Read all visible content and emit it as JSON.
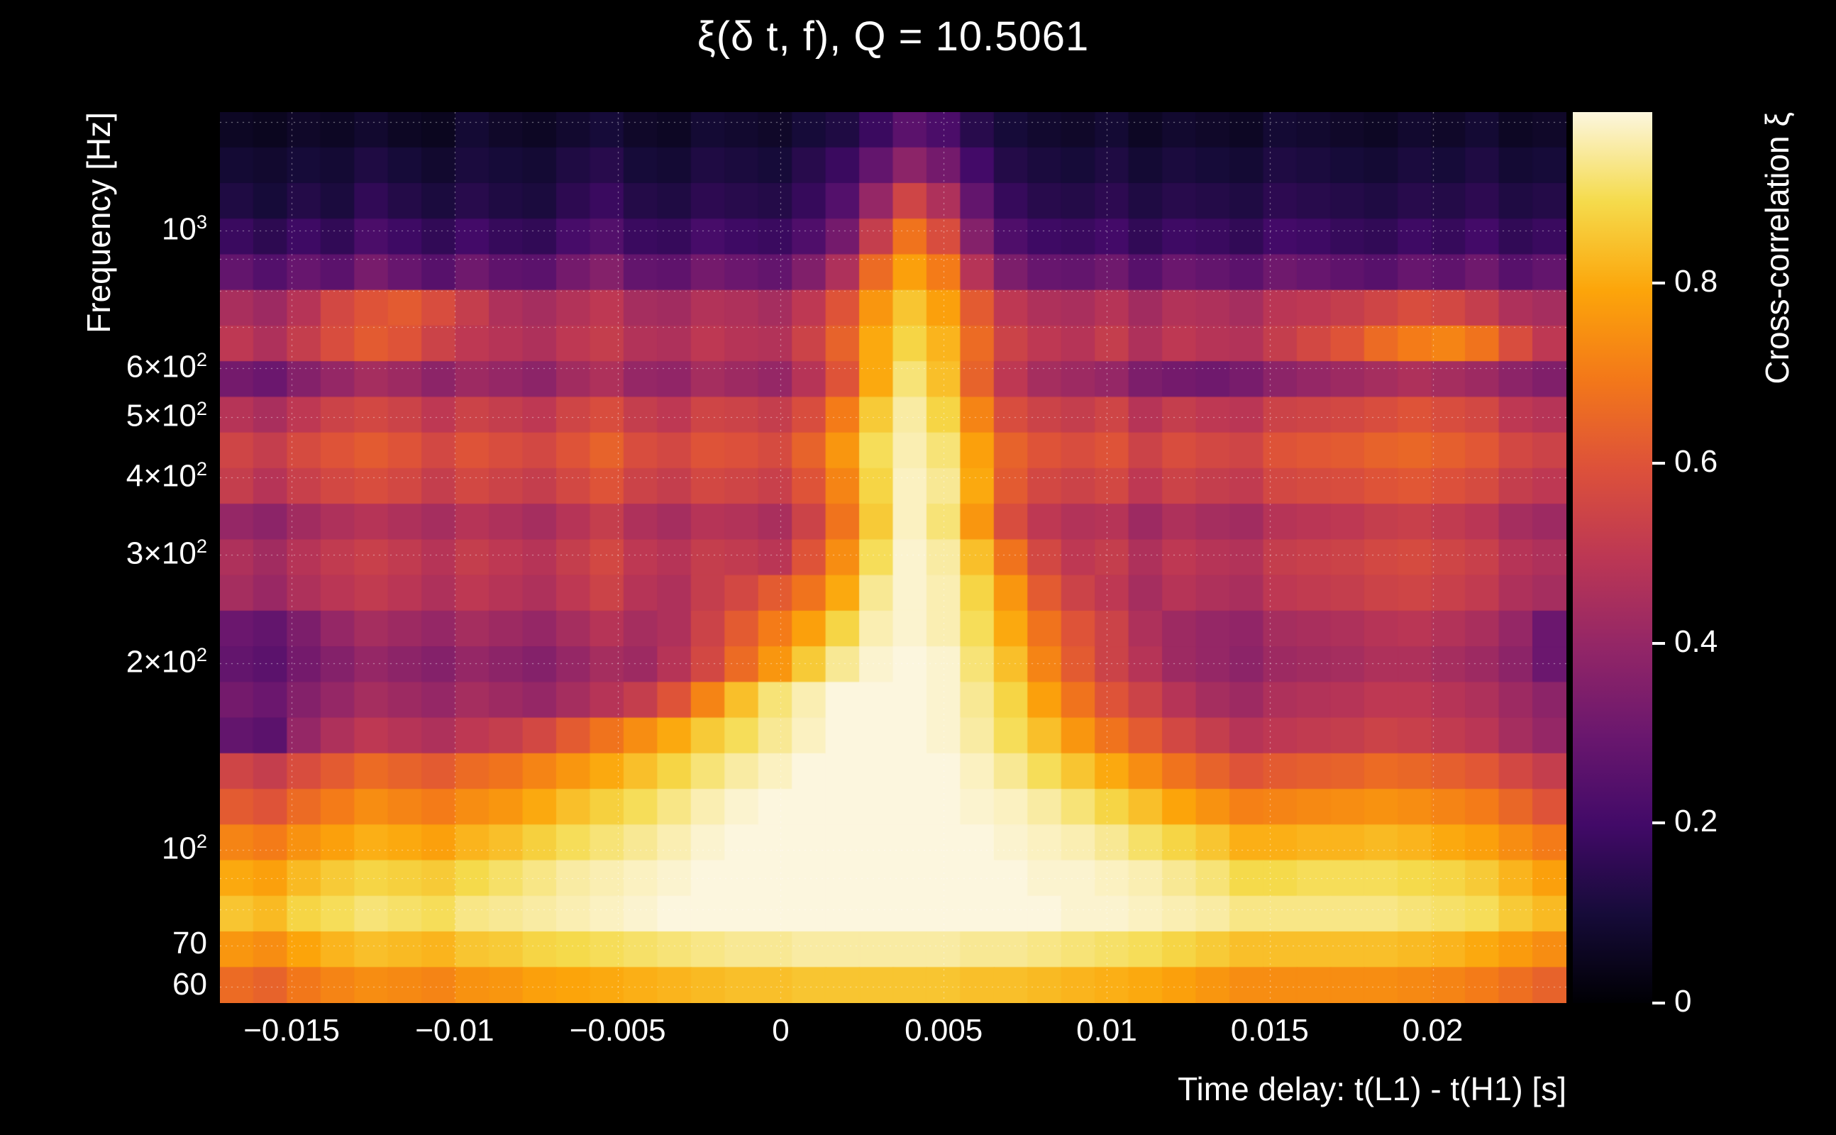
{
  "chart_data": {
    "type": "heatmap",
    "title": "ξ(δ t, f), Q = 10.5061",
    "xlabel": "Time delay: t(L1) - t(H1) [s]",
    "ylabel": "Frequency [Hz]",
    "colorbar_label": "Cross-correlation ξ",
    "x_range": [
      -0.0172,
      0.0241
    ],
    "y_range_hz": [
      56.5,
      1556
    ],
    "y_scale": "log",
    "grid": "dotted",
    "legend_position": "right-colorbar",
    "colorbar_range": [
      0,
      0.99
    ],
    "x_ticks": [
      {
        "v": -0.015,
        "label": "−0.015"
      },
      {
        "v": -0.01,
        "label": "−0.01"
      },
      {
        "v": -0.005,
        "label": "−0.005"
      },
      {
        "v": 0,
        "label": "0"
      },
      {
        "v": 0.005,
        "label": "0.005"
      },
      {
        "v": 0.01,
        "label": "0.01"
      },
      {
        "v": 0.015,
        "label": "0.015"
      },
      {
        "v": 0.02,
        "label": "0.02"
      }
    ],
    "y_ticks": [
      {
        "v": 1000,
        "base": "10",
        "sup": "3"
      },
      {
        "v": 600,
        "base": "6×10",
        "sup": "2"
      },
      {
        "v": 500,
        "base": "5×10",
        "sup": "2"
      },
      {
        "v": 400,
        "base": "4×10",
        "sup": "2"
      },
      {
        "v": 300,
        "base": "3×10",
        "sup": "2"
      },
      {
        "v": 200,
        "base": "2×10",
        "sup": "2"
      },
      {
        "v": 100,
        "base": "10",
        "sup": "2"
      },
      {
        "v": 70,
        "base": "70",
        "sup": ""
      },
      {
        "v": 60,
        "base": "60",
        "sup": ""
      }
    ],
    "y_gridlines_hz": [
      60,
      70,
      80,
      90,
      100,
      200,
      300,
      400,
      500,
      600,
      700,
      800,
      900,
      1000,
      1500
    ],
    "colorbar_ticks": [
      {
        "v": 0,
        "label": "0"
      },
      {
        "v": 0.2,
        "label": "0.2"
      },
      {
        "v": 0.4,
        "label": "0.4"
      },
      {
        "v": 0.6,
        "label": "0.6"
      },
      {
        "v": 0.8,
        "label": "0.8"
      }
    ],
    "colormap": [
      {
        "t": 0,
        "c": "#000004"
      },
      {
        "t": 0.1,
        "c": "#160b39"
      },
      {
        "t": 0.2,
        "c": "#420a68"
      },
      {
        "t": 0.3,
        "c": "#6a176e"
      },
      {
        "t": 0.4,
        "c": "#932667"
      },
      {
        "t": 0.5,
        "c": "#bc3754"
      },
      {
        "t": 0.6,
        "c": "#dd513a"
      },
      {
        "t": 0.7,
        "c": "#f37819"
      },
      {
        "t": 0.8,
        "c": "#fca50a"
      },
      {
        "t": 0.9,
        "c": "#f5db4c"
      },
      {
        "t": 1,
        "c": "#fcf6de"
      }
    ],
    "values_scale": 100,
    "row_center_freqs_hz": [
      1460,
      1280,
      1120,
      981,
      859,
      752,
      658,
      576,
      504,
      441,
      386,
      338,
      296,
      259,
      227,
      199,
      174,
      152,
      133,
      117,
      102,
      89,
      78,
      68,
      60
    ],
    "values": [
      [
        6,
        5,
        7,
        6,
        8,
        6,
        5,
        9,
        7,
        6,
        8,
        10,
        7,
        6,
        9,
        8,
        7,
        10,
        12,
        18,
        26,
        22,
        14,
        10,
        8,
        7,
        9,
        6,
        8,
        7,
        6,
        9,
        8,
        7,
        6,
        8,
        7,
        9,
        6,
        7
      ],
      [
        9,
        8,
        10,
        9,
        12,
        10,
        8,
        11,
        10,
        9,
        12,
        14,
        10,
        9,
        12,
        11,
        10,
        14,
        18,
        28,
        38,
        32,
        20,
        13,
        11,
        10,
        12,
        9,
        11,
        10,
        9,
        12,
        11,
        10,
        9,
        11,
        10,
        12,
        9,
        10
      ],
      [
        12,
        10,
        13,
        11,
        16,
        13,
        11,
        14,
        12,
        11,
        15,
        18,
        13,
        12,
        15,
        14,
        13,
        17,
        24,
        40,
        55,
        46,
        28,
        17,
        14,
        13,
        15,
        12,
        14,
        13,
        12,
        15,
        14,
        13,
        12,
        14,
        13,
        15,
        12,
        13
      ],
      [
        18,
        15,
        19,
        16,
        22,
        19,
        16,
        20,
        17,
        16,
        21,
        24,
        18,
        17,
        21,
        19,
        18,
        23,
        32,
        52,
        68,
        58,
        36,
        23,
        19,
        18,
        20,
        16,
        19,
        18,
        16,
        20,
        19,
        17,
        16,
        19,
        17,
        20,
        16,
        18
      ],
      [
        28,
        24,
        29,
        26,
        33,
        29,
        25,
        31,
        27,
        26,
        32,
        36,
        28,
        27,
        32,
        30,
        28,
        35,
        46,
        66,
        78,
        70,
        48,
        34,
        29,
        28,
        31,
        25,
        30,
        28,
        26,
        31,
        29,
        27,
        25,
        29,
        27,
        31,
        25,
        28
      ],
      [
        45,
        42,
        48,
        56,
        60,
        62,
        58,
        52,
        46,
        44,
        47,
        50,
        44,
        43,
        47,
        46,
        44,
        50,
        60,
        76,
        85,
        78,
        62,
        50,
        46,
        45,
        48,
        43,
        47,
        46,
        44,
        49,
        50,
        52,
        55,
        58,
        56,
        52,
        46,
        44
      ],
      [
        50,
        46,
        52,
        58,
        62,
        60,
        54,
        50,
        48,
        46,
        50,
        52,
        47,
        46,
        50,
        48,
        47,
        54,
        64,
        80,
        88,
        82,
        66,
        54,
        50,
        48,
        52,
        46,
        50,
        48,
        47,
        52,
        56,
        60,
        66,
        70,
        72,
        68,
        58,
        50
      ],
      [
        32,
        30,
        36,
        40,
        44,
        42,
        38,
        42,
        40,
        38,
        43,
        46,
        40,
        39,
        44,
        42,
        40,
        48,
        60,
        80,
        92,
        84,
        64,
        50,
        44,
        42,
        40,
        34,
        32,
        31,
        33,
        38,
        40,
        42,
        44,
        46,
        44,
        42,
        38,
        35
      ],
      [
        48,
        45,
        50,
        54,
        56,
        54,
        50,
        54,
        52,
        50,
        55,
        58,
        52,
        50,
        55,
        54,
        52,
        58,
        70,
        86,
        95,
        88,
        72,
        58,
        54,
        52,
        55,
        48,
        52,
        50,
        49,
        54,
        55,
        56,
        58,
        60,
        58,
        56,
        50,
        48
      ],
      [
        55,
        52,
        57,
        60,
        62,
        60,
        56,
        60,
        58,
        56,
        60,
        64,
        58,
        56,
        60,
        59,
        57,
        64,
        76,
        90,
        96,
        92,
        78,
        64,
        60,
        58,
        60,
        54,
        58,
        56,
        55,
        60,
        61,
        62,
        64,
        65,
        63,
        61,
        56,
        54
      ],
      [
        52,
        48,
        53,
        56,
        58,
        56,
        52,
        56,
        54,
        52,
        56,
        60,
        54,
        52,
        56,
        55,
        53,
        60,
        72,
        88,
        97,
        94,
        80,
        62,
        56,
        54,
        56,
        50,
        54,
        52,
        51,
        56,
        57,
        58,
        60,
        61,
        59,
        57,
        52,
        50
      ],
      [
        40,
        38,
        43,
        46,
        48,
        46,
        44,
        48,
        46,
        44,
        48,
        52,
        46,
        44,
        48,
        47,
        45,
        54,
        68,
        86,
        97,
        92,
        76,
        58,
        50,
        47,
        48,
        42,
        46,
        44,
        43,
        48,
        49,
        50,
        52,
        53,
        51,
        49,
        44,
        42
      ],
      [
        46,
        43,
        48,
        51,
        53,
        51,
        48,
        52,
        50,
        48,
        52,
        56,
        50,
        48,
        52,
        51,
        49,
        60,
        74,
        90,
        98,
        95,
        84,
        68,
        56,
        50,
        52,
        46,
        50,
        48,
        47,
        52,
        53,
        54,
        56,
        57,
        55,
        53,
        48,
        46
      ],
      [
        44,
        41,
        46,
        49,
        51,
        49,
        46,
        50,
        48,
        46,
        50,
        54,
        48,
        46,
        52,
        56,
        62,
        68,
        80,
        94,
        98,
        96,
        88,
        76,
        62,
        54,
        50,
        44,
        48,
        46,
        45,
        50,
        51,
        52,
        54,
        55,
        53,
        51,
        46,
        44
      ],
      [
        30,
        28,
        34,
        40,
        44,
        42,
        40,
        44,
        42,
        40,
        44,
        48,
        44,
        46,
        54,
        62,
        70,
        78,
        88,
        96,
        98,
        96,
        90,
        80,
        68,
        60,
        54,
        46,
        42,
        40,
        39,
        44,
        45,
        46,
        48,
        49,
        47,
        45,
        40,
        30
      ],
      [
        28,
        26,
        32,
        36,
        40,
        38,
        36,
        40,
        38,
        36,
        40,
        44,
        42,
        48,
        56,
        66,
        76,
        86,
        94,
        98,
        99,
        98,
        92,
        84,
        72,
        62,
        54,
        48,
        42,
        40,
        38,
        42,
        43,
        44,
        46,
        46,
        44,
        42,
        38,
        30
      ],
      [
        32,
        30,
        36,
        40,
        44,
        42,
        40,
        44,
        42,
        40,
        44,
        48,
        52,
        60,
        72,
        84,
        92,
        96,
        99,
        99,
        99,
        98,
        94,
        88,
        78,
        68,
        60,
        54,
        48,
        44,
        42,
        46,
        47,
        48,
        50,
        50,
        48,
        46,
        42,
        38
      ],
      [
        28,
        26,
        40,
        46,
        50,
        48,
        46,
        50,
        52,
        56,
        62,
        68,
        74,
        80,
        86,
        90,
        94,
        97,
        99,
        99,
        99,
        98,
        95,
        90,
        84,
        76,
        68,
        62,
        56,
        52,
        48,
        50,
        51,
        52,
        54,
        53,
        51,
        49,
        44,
        40
      ],
      [
        55,
        52,
        58,
        62,
        66,
        64,
        62,
        66,
        68,
        72,
        76,
        80,
        84,
        88,
        92,
        95,
        97,
        99,
        99,
        99,
        99,
        99,
        97,
        94,
        90,
        85,
        80,
        74,
        68,
        64,
        60,
        62,
        63,
        64,
        66,
        65,
        63,
        61,
        56,
        52
      ],
      [
        62,
        60,
        66,
        70,
        74,
        72,
        70,
        74,
        76,
        80,
        84,
        87,
        90,
        93,
        96,
        98,
        99,
        99,
        99,
        99,
        99,
        99,
        98,
        97,
        95,
        92,
        88,
        84,
        79,
        75,
        71,
        72,
        73,
        74,
        75,
        74,
        72,
        70,
        65,
        60
      ],
      [
        72,
        70,
        75,
        78,
        81,
        80,
        78,
        82,
        84,
        87,
        90,
        92,
        94,
        96,
        98,
        99,
        99,
        99,
        99,
        99,
        99,
        99,
        99,
        98,
        97,
        96,
        94,
        91,
        88,
        85,
        81,
        81,
        82,
        82,
        83,
        82,
        80,
        78,
        74,
        70
      ],
      [
        80,
        78,
        83,
        86,
        88,
        87,
        86,
        89,
        91,
        93,
        95,
        96,
        97,
        98,
        99,
        99,
        99,
        99,
        99,
        99,
        99,
        99,
        99,
        99,
        98,
        98,
        97,
        96,
        94,
        92,
        89,
        89,
        90,
        90,
        90,
        89,
        88,
        86,
        82,
        78
      ],
      [
        85,
        83,
        88,
        90,
        92,
        91,
        90,
        93,
        94,
        95,
        96,
        97,
        98,
        99,
        99,
        99,
        99,
        99,
        99,
        99,
        99,
        99,
        99,
        99,
        99,
        98,
        98,
        97,
        96,
        95,
        93,
        93,
        93,
        93,
        93,
        92,
        91,
        90,
        86,
        83
      ],
      [
        76,
        74,
        79,
        82,
        84,
        83,
        82,
        85,
        86,
        88,
        89,
        90,
        91,
        92,
        93,
        94,
        94,
        95,
        95,
        95,
        95,
        95,
        94,
        94,
        93,
        92,
        91,
        90,
        88,
        86,
        84,
        84,
        84,
        84,
        84,
        83,
        82,
        80,
        77,
        74
      ],
      [
        66,
        64,
        69,
        72,
        74,
        73,
        72,
        75,
        76,
        78,
        79,
        80,
        81,
        82,
        83,
        84,
        84,
        85,
        85,
        85,
        85,
        85,
        84,
        84,
        83,
        82,
        81,
        80,
        78,
        76,
        74,
        74,
        74,
        74,
        74,
        73,
        72,
        70,
        67,
        64
      ]
    ]
  }
}
